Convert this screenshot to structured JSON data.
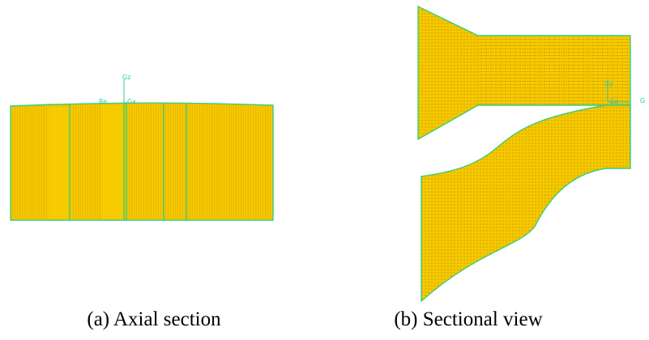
{
  "panels": [
    {
      "caption": "(a) Axial section",
      "axis_labels": [
        "Gz",
        "Re",
        "Gx"
      ]
    },
    {
      "caption": "(b) Sectional view",
      "axis_labels": [
        "Gy",
        "Gz",
        "G"
      ]
    }
  ]
}
